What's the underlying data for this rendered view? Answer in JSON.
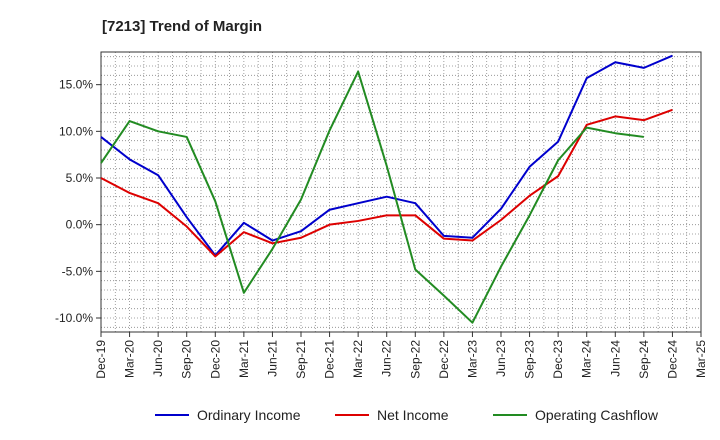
{
  "chart_data": {
    "type": "line",
    "title": "[7213]  Trend of Margin",
    "xlabel": "",
    "ylabel": "",
    "x": [
      "Dec-19",
      "Mar-20",
      "Jun-20",
      "Sep-20",
      "Dec-20",
      "Mar-21",
      "Jun-21",
      "Sep-21",
      "Dec-21",
      "Mar-22",
      "Jun-22",
      "Sep-22",
      "Dec-22",
      "Mar-23",
      "Jun-23",
      "Sep-23",
      "Dec-23",
      "Mar-24",
      "Jun-24",
      "Sep-24",
      "Dec-24",
      "Mar-25"
    ],
    "ylim": [
      -11.5,
      18.5
    ],
    "yticks": [
      -10,
      -5,
      0,
      5,
      10,
      15
    ],
    "ytick_labels": [
      "-10.0%",
      "-5.0%",
      "0.0%",
      "5.0%",
      "10.0%",
      "15.0%"
    ],
    "grid": true,
    "legend": "bottom",
    "series": [
      {
        "name": "Ordinary Income",
        "color": "#0000cc",
        "values": [
          9.4,
          7.0,
          5.3,
          0.8,
          -3.3,
          0.2,
          -1.7,
          -0.7,
          1.6,
          2.3,
          3.0,
          2.3,
          -1.2,
          -1.4,
          1.7,
          6.2,
          8.9,
          15.7,
          17.4,
          16.8,
          18.1,
          null
        ]
      },
      {
        "name": "Net Income",
        "color": "#dd0000",
        "values": [
          5.0,
          3.4,
          2.3,
          -0.2,
          -3.4,
          -0.8,
          -2.0,
          -1.4,
          0.0,
          0.4,
          1.0,
          1.0,
          -1.5,
          -1.7,
          0.5,
          3.1,
          5.2,
          10.7,
          11.6,
          11.2,
          12.3,
          null
        ]
      },
      {
        "name": "Operating Cashflow",
        "color": "#228b22",
        "values": [
          6.6,
          11.1,
          10.0,
          9.4,
          2.5,
          -7.3,
          -2.6,
          2.7,
          10.1,
          16.4,
          6.3,
          -4.8,
          -7.6,
          -10.5,
          -4.5,
          1.0,
          6.9,
          10.4,
          9.8,
          9.4,
          null,
          null
        ]
      }
    ]
  }
}
